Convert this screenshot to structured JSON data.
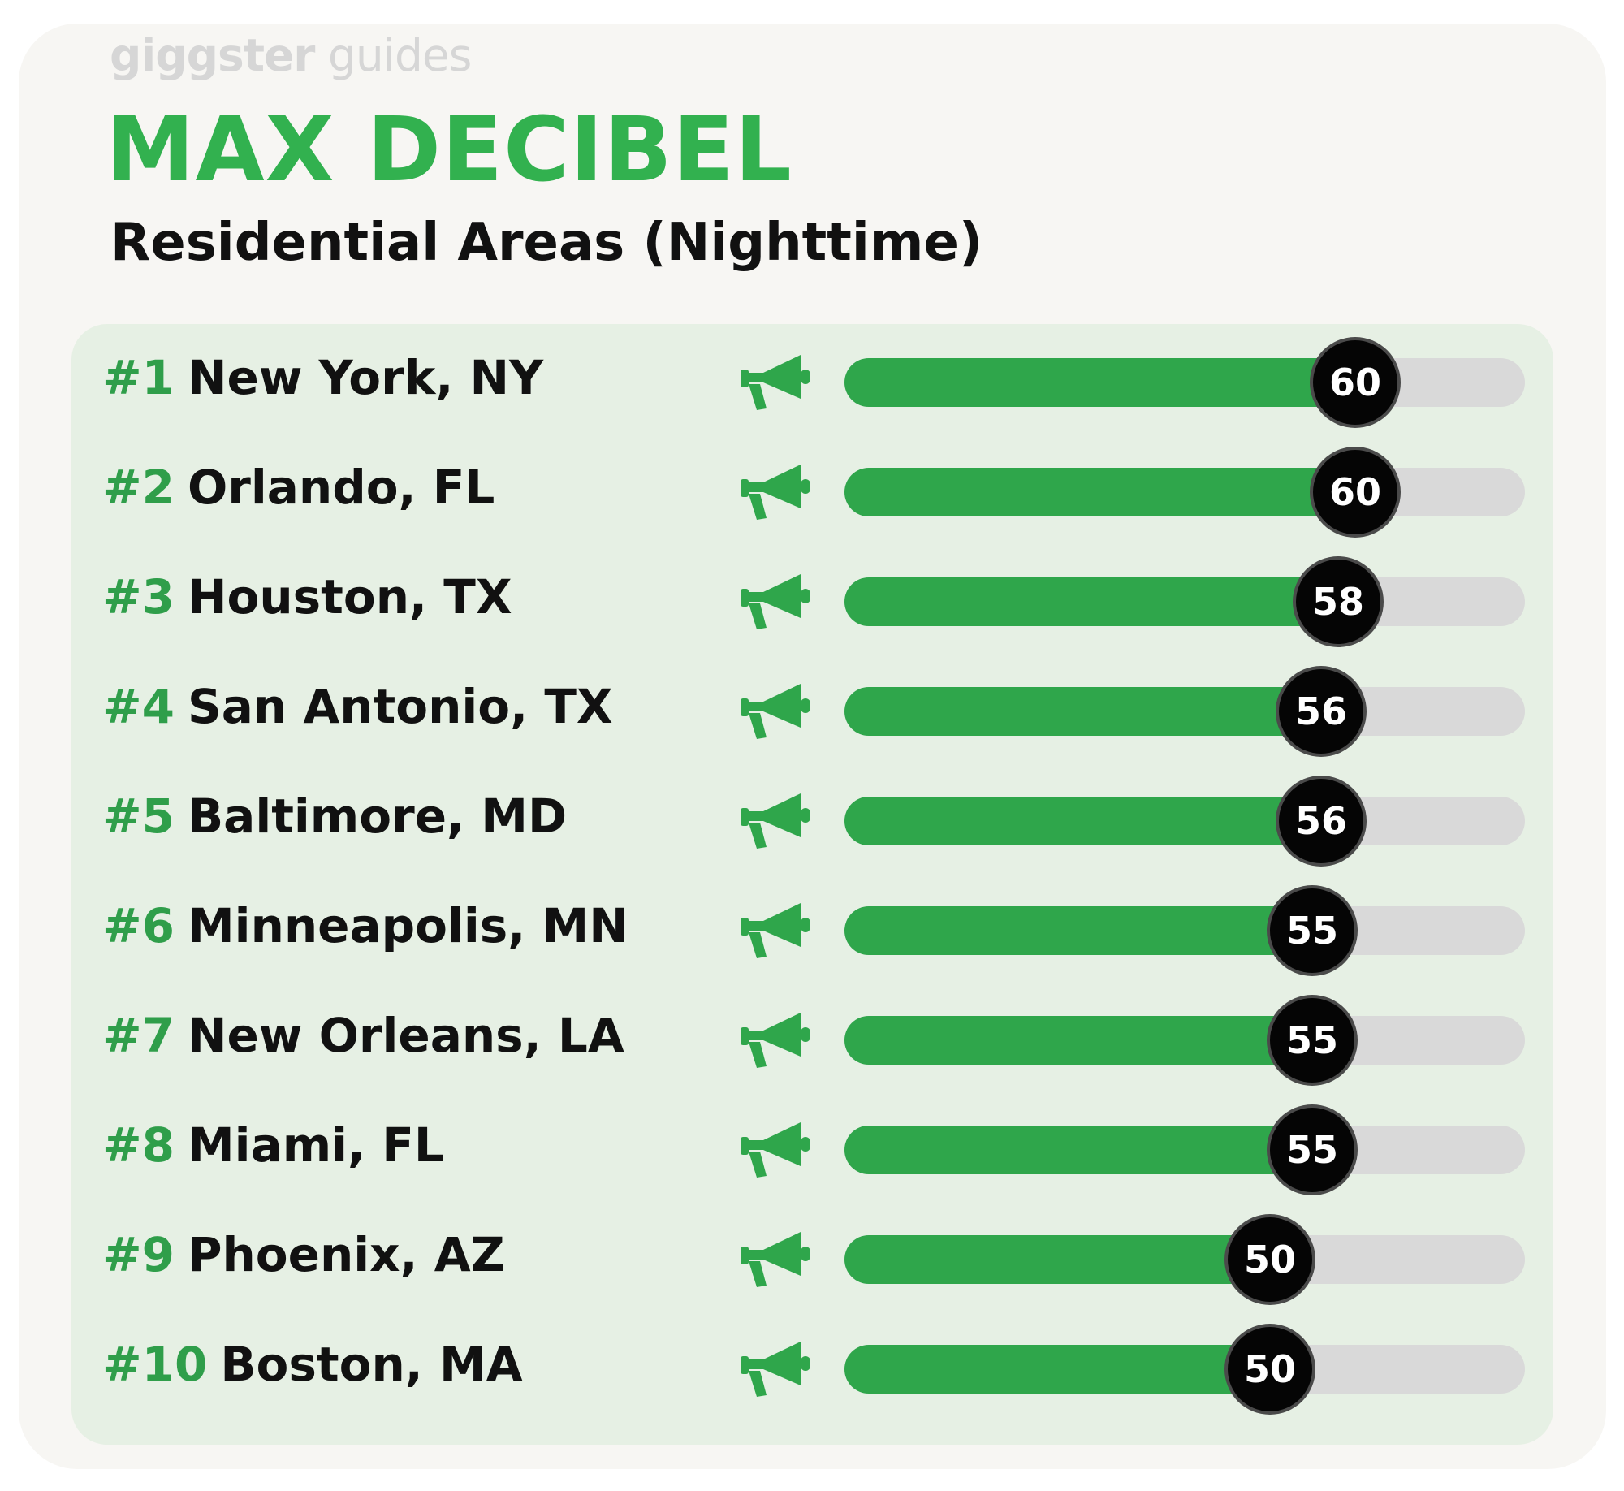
{
  "brand": {
    "part1": "giggster",
    "part2": " guides"
  },
  "colors": {
    "title": "#32b14f",
    "bar_fill": "#2fa64b",
    "bar_track": "#d9d9d9",
    "panel": "#e6f0e4",
    "badge": "#050505",
    "rank": "#2f9e4a"
  },
  "icon": "megaphone-icon",
  "chart_data": {
    "type": "bar",
    "orientation": "horizontal",
    "title": "MAX DECIBEL",
    "subtitle": "Residential Areas (Nighttime)",
    "xlim": [
      0,
      80
    ],
    "grid": false,
    "categories": [
      "New York, NY",
      "Orlando, FL",
      "Houston, TX",
      "San Antonio, TX",
      "Baltimore, MD",
      "Minneapolis, MN",
      "New Orleans, LA",
      "Miami, FL",
      "Phoenix, AZ",
      "Boston, MA"
    ],
    "ranks": [
      "#1",
      "#2",
      "#3",
      "#4",
      "#5",
      "#6",
      "#7",
      "#8",
      "#9",
      "#10"
    ],
    "values": [
      60,
      60,
      58,
      56,
      56,
      55,
      55,
      55,
      50,
      50
    ]
  }
}
